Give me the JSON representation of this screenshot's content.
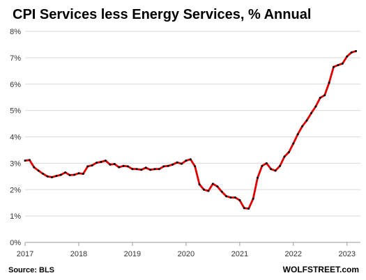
{
  "chart_data": {
    "type": "line",
    "title": "CPI Services less Energy Services, % Annual",
    "xlabel": "",
    "ylabel": "",
    "ylim": [
      0,
      8
    ],
    "yticks": [
      "0%",
      "1%",
      "2%",
      "3%",
      "4%",
      "5%",
      "6%",
      "7%",
      "8%"
    ],
    "xticks": [
      "2017",
      "2018",
      "2019",
      "2020",
      "2021",
      "2022",
      "2023"
    ],
    "grid": true,
    "series": [
      {
        "x": [
          "2017-01",
          "2017-02",
          "2017-03",
          "2017-04",
          "2017-05",
          "2017-06",
          "2017-07",
          "2017-08",
          "2017-09",
          "2017-10",
          "2017-11",
          "2017-12",
          "2018-01",
          "2018-02",
          "2018-03",
          "2018-04",
          "2018-05",
          "2018-06",
          "2018-07",
          "2018-08",
          "2018-09",
          "2018-10",
          "2018-11",
          "2018-12",
          "2019-01",
          "2019-02",
          "2019-03",
          "2019-04",
          "2019-05",
          "2019-06",
          "2019-07",
          "2019-08",
          "2019-09",
          "2019-10",
          "2019-11",
          "2019-12",
          "2020-01",
          "2020-02",
          "2020-03",
          "2020-04",
          "2020-05",
          "2020-06",
          "2020-07",
          "2020-08",
          "2020-09",
          "2020-10",
          "2020-11",
          "2020-12",
          "2021-01",
          "2021-02",
          "2021-03",
          "2021-04",
          "2021-05",
          "2021-06",
          "2021-07",
          "2021-08",
          "2021-09",
          "2021-10",
          "2021-11",
          "2021-12",
          "2022-01",
          "2022-02",
          "2022-03",
          "2022-04",
          "2022-05",
          "2022-06",
          "2022-07",
          "2022-08",
          "2022-09",
          "2022-10",
          "2022-11",
          "2022-12",
          "2023-01",
          "2023-02",
          "2023-03"
        ],
        "values": [
          3.1,
          3.12,
          2.85,
          2.72,
          2.6,
          2.5,
          2.47,
          2.52,
          2.56,
          2.65,
          2.55,
          2.56,
          2.62,
          2.6,
          2.88,
          2.92,
          3.02,
          3.05,
          3.1,
          2.95,
          2.97,
          2.85,
          2.9,
          2.88,
          2.78,
          2.78,
          2.75,
          2.83,
          2.75,
          2.78,
          2.78,
          2.88,
          2.9,
          2.95,
          3.03,
          2.98,
          3.1,
          3.15,
          2.88,
          2.2,
          2.0,
          1.95,
          2.22,
          2.12,
          1.92,
          1.75,
          1.7,
          1.7,
          1.6,
          1.3,
          1.28,
          1.65,
          2.45,
          2.9,
          3.0,
          2.78,
          2.72,
          2.9,
          3.25,
          3.42,
          3.75,
          4.1,
          4.4,
          4.62,
          4.9,
          5.15,
          5.48,
          5.58,
          6.05,
          6.65,
          6.72,
          6.78,
          7.05,
          7.2,
          7.25
        ]
      }
    ],
    "colors": {
      "line": "#e00000",
      "marker": "#000000",
      "grid": "#d9d9d9",
      "axis": "#999999"
    }
  },
  "footer": {
    "source": "Source: BLS",
    "brand": "WOLFSTREET.com"
  }
}
